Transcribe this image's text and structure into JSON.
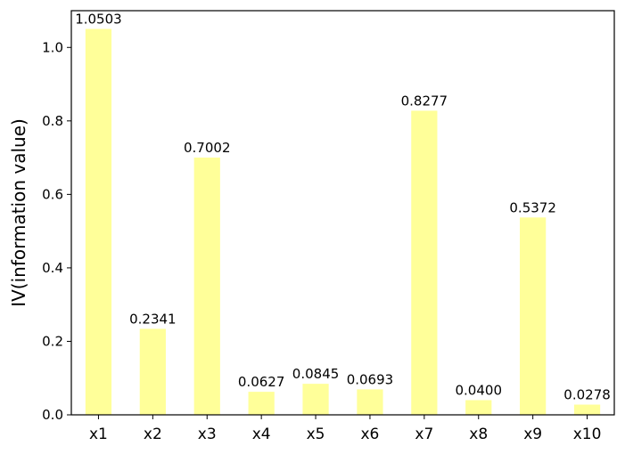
{
  "chart_data": {
    "type": "bar",
    "categories": [
      "x1",
      "x2",
      "x3",
      "x4",
      "x5",
      "x6",
      "x7",
      "x8",
      "x9",
      "x10"
    ],
    "values": [
      1.0503,
      0.2341,
      0.7002,
      0.0627,
      0.0845,
      0.0693,
      0.8277,
      0.04,
      0.5372,
      0.0278
    ],
    "value_labels": [
      "1.0503",
      "0.2341",
      "0.7002",
      "0.0627",
      "0.0845",
      "0.0693",
      "0.8277",
      "0.0400",
      "0.5372",
      "0.0278"
    ],
    "title": "",
    "xlabel": "",
    "ylabel": "IV(information value)",
    "ylim": [
      0,
      1.1
    ],
    "yticks": [
      0.0,
      0.2,
      0.4,
      0.6,
      0.8,
      1.0
    ],
    "ytick_labels": [
      "0.0",
      "0.2",
      "0.4",
      "0.6",
      "0.8",
      "1.0"
    ],
    "grid": false,
    "legend": "none",
    "bar_color": "#ffff80",
    "bar_alpha": 0.8
  }
}
